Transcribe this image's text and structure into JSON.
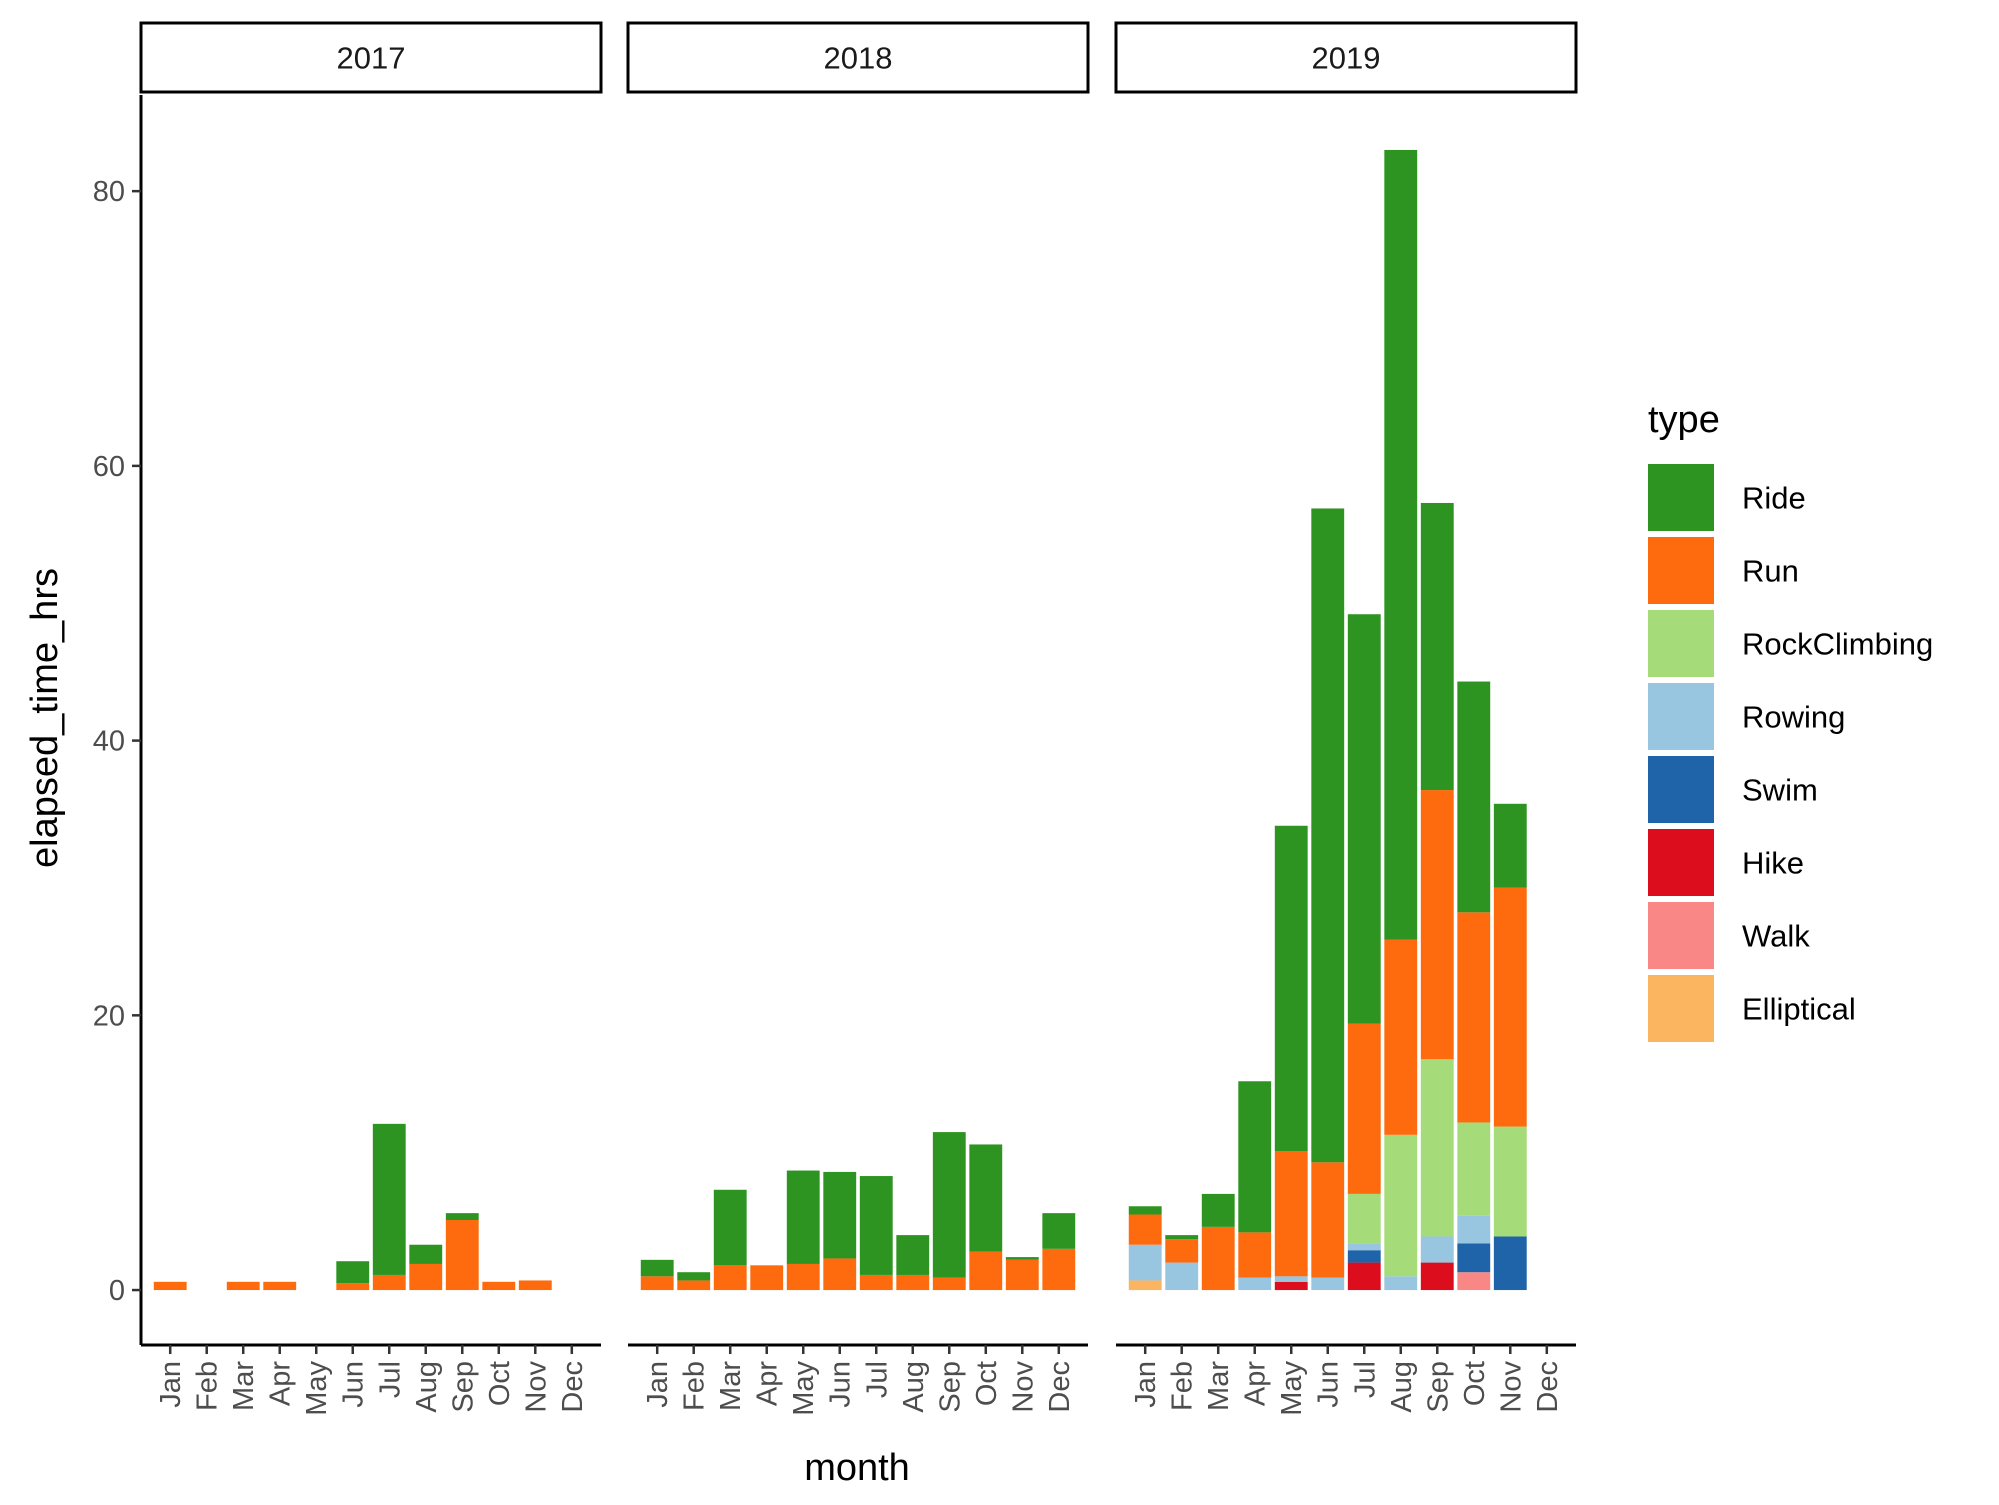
{
  "chart_data": {
    "type": "bar",
    "stacked": true,
    "facets": [
      "2017",
      "2018",
      "2019"
    ],
    "categories": [
      "Jan",
      "Feb",
      "Mar",
      "Apr",
      "May",
      "Jun",
      "Jul",
      "Aug",
      "Sep",
      "Oct",
      "Nov",
      "Dec"
    ],
    "xlabel": "month",
    "ylabel": "elapsed_time_hrs",
    "ylim": [
      -4,
      87
    ],
    "yticks": [
      0,
      20,
      40,
      60,
      80
    ],
    "legend": {
      "title": "type",
      "position": "right",
      "entries": [
        "Ride",
        "Run",
        "RockClimbing",
        "Rowing",
        "Swim",
        "Hike",
        "Walk",
        "Elliptical"
      ]
    },
    "colors": {
      "Ride": "#2e9421",
      "Run": "#fd6b0e",
      "RockClimbing": "#a6db7a",
      "Rowing": "#98c5e0",
      "Swim": "#1f64a8",
      "Hike": "#dc0d1c",
      "Walk": "#f98786",
      "Elliptical": "#fbb460"
    },
    "stack_order_bottom_to_top": [
      "Elliptical",
      "Walk",
      "Hike",
      "Swim",
      "Rowing",
      "RockClimbing",
      "Run",
      "Ride"
    ],
    "panels": [
      {
        "year": "2017",
        "series": [
          {
            "name": "Ride",
            "values": [
              0,
              0,
              0,
              0,
              0,
              1.6,
              11,
              1.4,
              0.5,
              0,
              0,
              0
            ]
          },
          {
            "name": "Run",
            "values": [
              0.6,
              0,
              0.6,
              0.6,
              0,
              0.5,
              1.1,
              1.9,
              5.1,
              0.6,
              0.7,
              0
            ]
          },
          {
            "name": "RockClimbing",
            "values": [
              0,
              0,
              0,
              0,
              0,
              0,
              0,
              0,
              0,
              0,
              0,
              0
            ]
          },
          {
            "name": "Rowing",
            "values": [
              0,
              0,
              0,
              0,
              0,
              0,
              0,
              0,
              0,
              0,
              0,
              0
            ]
          },
          {
            "name": "Swim",
            "values": [
              0,
              0,
              0,
              0,
              0,
              0,
              0,
              0,
              0,
              0,
              0,
              0
            ]
          },
          {
            "name": "Hike",
            "values": [
              0,
              0,
              0,
              0,
              0,
              0,
              0,
              0,
              0,
              0,
              0,
              0
            ]
          },
          {
            "name": "Walk",
            "values": [
              0,
              0,
              0,
              0,
              0,
              0,
              0,
              0,
              0,
              0,
              0,
              0
            ]
          },
          {
            "name": "Elliptical",
            "values": [
              0,
              0,
              0,
              0,
              0,
              0,
              0,
              0,
              0,
              0,
              0,
              0
            ]
          }
        ]
      },
      {
        "year": "2018",
        "series": [
          {
            "name": "Ride",
            "values": [
              1.2,
              0.6,
              5.5,
              0,
              6.8,
              6.3,
              7.2,
              2.9,
              10.6,
              7.8,
              0.2,
              2.6
            ]
          },
          {
            "name": "Run",
            "values": [
              1.0,
              0.7,
              1.8,
              1.8,
              1.9,
              2.3,
              1.1,
              1.1,
              0.9,
              2.8,
              2.2,
              3.0
            ]
          },
          {
            "name": "RockClimbing",
            "values": [
              0,
              0,
              0,
              0,
              0,
              0,
              0,
              0,
              0,
              0,
              0,
              0
            ]
          },
          {
            "name": "Rowing",
            "values": [
              0,
              0,
              0,
              0,
              0,
              0,
              0,
              0,
              0,
              0,
              0,
              0
            ]
          },
          {
            "name": "Swim",
            "values": [
              0,
              0,
              0,
              0,
              0,
              0,
              0,
              0,
              0,
              0,
              0,
              0
            ]
          },
          {
            "name": "Hike",
            "values": [
              0,
              0,
              0,
              0,
              0,
              0,
              0,
              0,
              0,
              0,
              0,
              0
            ]
          },
          {
            "name": "Walk",
            "values": [
              0,
              0,
              0,
              0,
              0,
              0,
              0,
              0,
              0,
              0,
              0,
              0
            ]
          },
          {
            "name": "Elliptical",
            "values": [
              0,
              0,
              0,
              0,
              0,
              0,
              0,
              0,
              0,
              0,
              0,
              0
            ]
          }
        ]
      },
      {
        "year": "2019",
        "series": [
          {
            "name": "Ride",
            "values": [
              0.6,
              0.3,
              2.4,
              11.0,
              23.7,
              47.6,
              29.8,
              57.5,
              20.9,
              16.8,
              6.1,
              0
            ]
          },
          {
            "name": "Run",
            "values": [
              2.2,
              1.7,
              4.6,
              3.3,
              9.1,
              8.4,
              12.4,
              14.2,
              19.6,
              15.3,
              17.4,
              0
            ]
          },
          {
            "name": "RockClimbing",
            "values": [
              0,
              0,
              0,
              0,
              0,
              0,
              3.6,
              10.3,
              12.9,
              6.8,
              8.0,
              0
            ]
          },
          {
            "name": "Rowing",
            "values": [
              2.6,
              2.0,
              0,
              0.9,
              0.4,
              0.9,
              0.5,
              1.0,
              1.9,
              2.0,
              0,
              0
            ]
          },
          {
            "name": "Swim",
            "values": [
              0,
              0,
              0,
              0,
              0,
              0,
              0.9,
              0,
              0,
              2.1,
              3.9,
              0
            ]
          },
          {
            "name": "Hike",
            "values": [
              0,
              0,
              0,
              0,
              0.6,
              0,
              2.0,
              0,
              2.0,
              0,
              0,
              0
            ]
          },
          {
            "name": "Walk",
            "values": [
              0,
              0,
              0,
              0,
              0,
              0,
              0,
              0,
              0,
              1.3,
              0,
              0
            ]
          },
          {
            "name": "Elliptical",
            "values": [
              0.7,
              0,
              0,
              0,
              0,
              0,
              0,
              0,
              0,
              0,
              0,
              0
            ]
          }
        ]
      }
    ]
  }
}
